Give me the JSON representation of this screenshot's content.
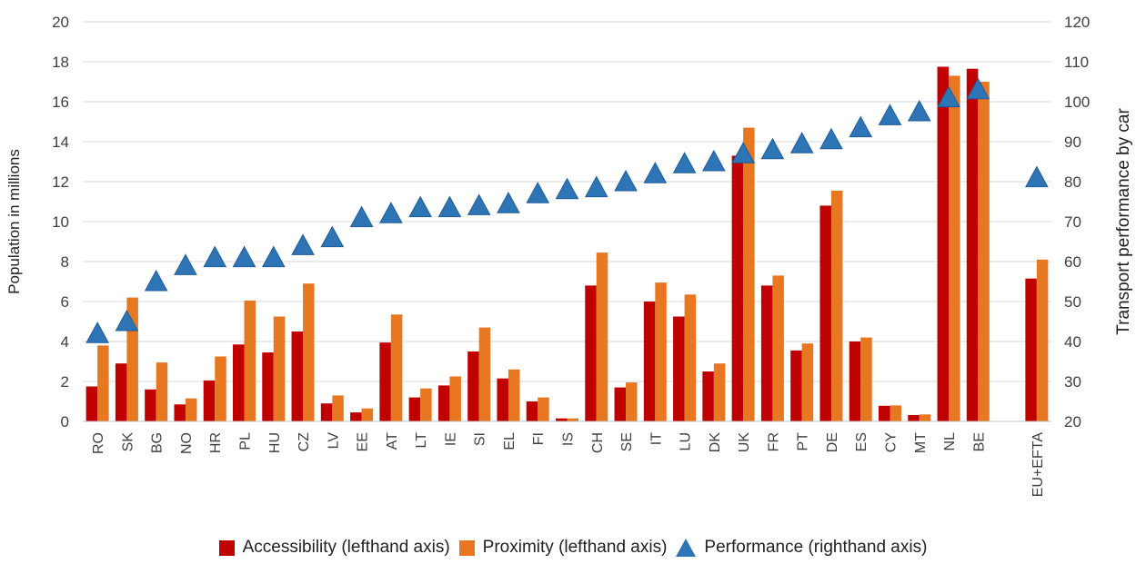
{
  "chart_data": {
    "type": "bar",
    "categories": [
      "RO",
      "SK",
      "BG",
      "NO",
      "HR",
      "PL",
      "HU",
      "CZ",
      "LV",
      "EE",
      "AT",
      "LT",
      "IE",
      "SI",
      "EL",
      "FI",
      "IS",
      "CH",
      "SE",
      "IT",
      "LU",
      "DK",
      "UK",
      "FR",
      "PT",
      "DE",
      "ES",
      "CY",
      "MT",
      "NL",
      "BE",
      "",
      "EU+EFTA"
    ],
    "series": [
      {
        "name": "Accessibility (lefthand axis)",
        "axis": "left",
        "kind": "bar",
        "color": "#c00000",
        "values": [
          1.75,
          2.9,
          1.6,
          0.85,
          2.05,
          3.85,
          3.45,
          4.5,
          0.9,
          0.45,
          3.95,
          1.2,
          1.8,
          3.5,
          2.15,
          1.0,
          0.15,
          6.8,
          1.7,
          6.0,
          5.25,
          2.5,
          13.3,
          6.8,
          3.55,
          10.8,
          4.0,
          0.78,
          0.32,
          17.75,
          17.65,
          null,
          7.15
        ]
      },
      {
        "name": "Proximity (lefthand axis)",
        "axis": "left",
        "kind": "bar",
        "color": "#e87722",
        "values": [
          3.8,
          6.2,
          2.95,
          1.15,
          3.25,
          6.05,
          5.25,
          6.9,
          1.3,
          0.65,
          5.35,
          1.65,
          2.25,
          4.7,
          2.6,
          1.2,
          0.15,
          8.45,
          1.95,
          6.95,
          6.35,
          2.9,
          14.7,
          7.3,
          3.9,
          11.55,
          4.2,
          0.8,
          0.35,
          17.3,
          17.0,
          null,
          8.1
        ]
      },
      {
        "name": "Performance (righthand axis)",
        "axis": "right",
        "kind": "marker",
        "color": "#2e75b6",
        "values": [
          42,
          45,
          55,
          59,
          61,
          61,
          61,
          64,
          66,
          71,
          72,
          73.5,
          73.5,
          74,
          74.5,
          77,
          78,
          78.5,
          80,
          82,
          84.5,
          85,
          87,
          88,
          89.5,
          90.5,
          93.5,
          96.5,
          97.5,
          101,
          103,
          null,
          81
        ]
      }
    ],
    "ylabel": "Population in millions",
    "y2label": "Transport performance by car",
    "ylim": [
      0,
      20
    ],
    "y2lim": [
      20,
      120
    ],
    "yticks": [
      "0",
      "2",
      "4",
      "6",
      "8",
      "10",
      "12",
      "14",
      "16",
      "18",
      "20"
    ],
    "y2ticks": [
      "20",
      "30",
      "40",
      "50",
      "60",
      "70",
      "80",
      "90",
      "100",
      "110",
      "120"
    ],
    "grid": true,
    "legend_position": "bottom"
  }
}
